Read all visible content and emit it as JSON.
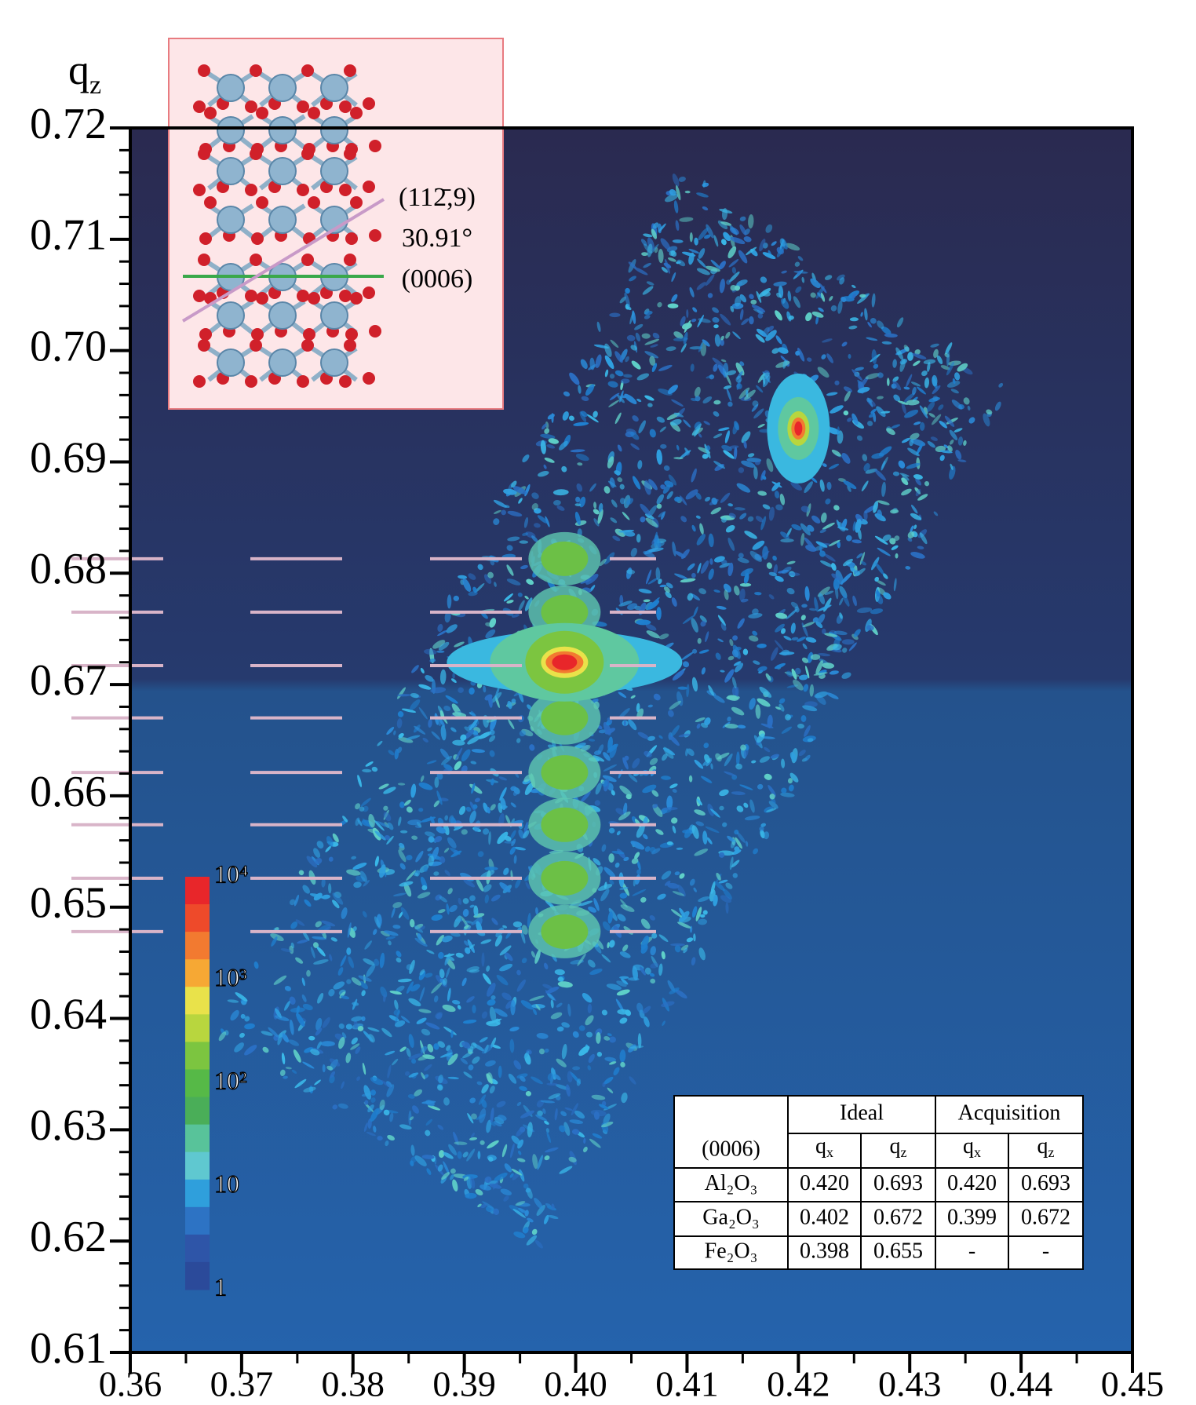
{
  "chart_data": {
    "type": "rsm",
    "y_label": {
      "base": "q",
      "sub": "z"
    },
    "xlim": [
      0.36,
      0.45
    ],
    "xticks": [
      0.36,
      0.37,
      0.38,
      0.39,
      {
        "value": 0.4,
        "label": "0.40"
      },
      0.41,
      0.42,
      0.43,
      0.44,
      0.45
    ],
    "ylim": [
      0.61,
      0.72
    ],
    "yticks": [
      0.61,
      0.62,
      0.63,
      0.64,
      0.65,
      0.66,
      0.67,
      0.68,
      0.69,
      {
        "value": 0.7,
        "label": "0.70"
      },
      0.71,
      0.72
    ],
    "peaks": [
      {
        "x": 0.42,
        "y": 0.693
      },
      {
        "x": 0.399,
        "y": 0.672
      }
    ],
    "fringe_lines": [
      0.6813,
      0.6765,
      0.6717,
      0.667,
      0.6621,
      0.6574,
      0.6526,
      0.6478
    ],
    "colorbar": {
      "log": true,
      "lim": [
        1,
        10000
      ],
      "ticks": [
        {
          "value": 10000,
          "label": "10⁴"
        },
        {
          "value": 1000,
          "label": "10³"
        },
        {
          "value": 100,
          "label": "10²"
        },
        10,
        1
      ],
      "colors": [
        "#e8262a",
        "#ee4a2a",
        "#f27a30",
        "#f6a834",
        "#e9e24a",
        "#b8d63e",
        "#7cc540",
        "#56b947",
        "#4aae58",
        "#58c39a",
        "#5fc8d0",
        "#2f9fdc",
        "#2d73c4",
        "#2e55a8",
        "#2b4a9a"
      ]
    },
    "inset": {
      "labels": [
        "(112̄,9)",
        "30.91°",
        "(0006)"
      ]
    },
    "table": {
      "groups": [
        "Ideal",
        "Acquisition"
      ],
      "corner": "(0006)",
      "columns": [
        {
          "base": "q",
          "sub": "x"
        },
        {
          "base": "q",
          "sub": "z"
        },
        {
          "base": "q",
          "sub": "x"
        },
        {
          "base": "q",
          "sub": "z"
        }
      ],
      "rows": [
        {
          "name": "Al₂O₃",
          "cells": [
            {
              "value": 0.42,
              "label": "0.420"
            },
            {
              "value": 0.693,
              "label": "0.693"
            },
            {
              "value": 0.42,
              "label": "0.420"
            },
            {
              "value": 0.693,
              "label": "0.693"
            }
          ]
        },
        {
          "name": "Ga₂O₃",
          "cells": [
            {
              "value": 0.402,
              "label": "0.402"
            },
            {
              "value": 0.672,
              "label": "0.672"
            },
            {
              "value": 0.399,
              "label": "0.399"
            },
            {
              "value": 0.672,
              "label": "0.672"
            }
          ]
        },
        {
          "name": "Fe₂O₃",
          "cells": [
            {
              "value": 0.398,
              "label": "0.398"
            },
            {
              "value": 0.655,
              "label": "0.655"
            },
            "-",
            "-"
          ]
        }
      ]
    }
  }
}
